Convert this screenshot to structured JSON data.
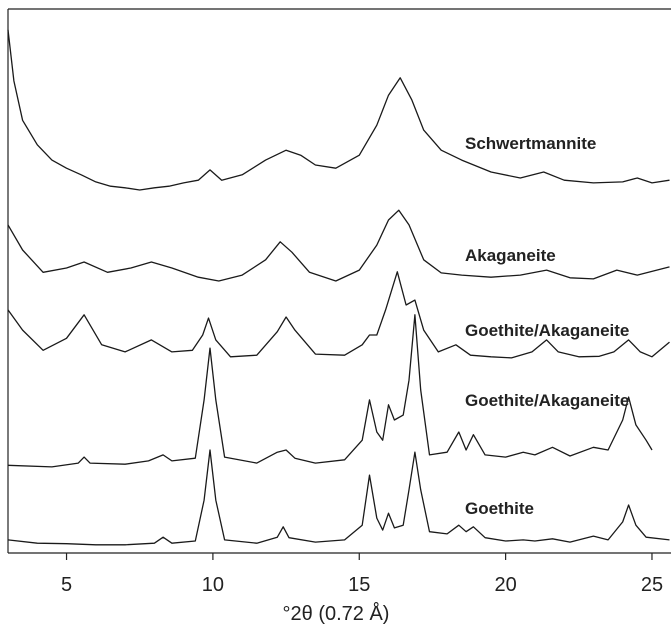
{
  "chart_data": {
    "type": "line",
    "x_label": "°2θ (0.72 Å)",
    "xlim": [
      3,
      25.65
    ],
    "xticks": [
      5,
      10,
      15,
      20,
      25
    ],
    "ylim": [
      0,
      100
    ],
    "series": [
      {
        "name": "Schwertmannite",
        "color": "#1a1a1a",
        "x": [
          3.0,
          3.2,
          3.5,
          4.0,
          4.5,
          5.0,
          5.5,
          6.0,
          6.5,
          7.0,
          7.5,
          8.0,
          8.5,
          9.0,
          9.5,
          9.9,
          10.3,
          11.0,
          11.8,
          12.5,
          13.0,
          13.5,
          14.2,
          15.0,
          15.6,
          16.0,
          16.4,
          16.8,
          17.2,
          17.8,
          18.5,
          19.5,
          20.5,
          21.3,
          22.0,
          23.0,
          24.0,
          24.5,
          25.0,
          25.6
        ],
        "values": [
          96.0,
          86.6,
          79.4,
          74.9,
          72.1,
          70.6,
          69.4,
          68.1,
          67.3,
          67.0,
          66.6,
          67.0,
          67.3,
          67.9,
          68.4,
          70.3,
          68.4,
          69.4,
          72.1,
          73.9,
          73.0,
          71.2,
          70.6,
          73.0,
          78.5,
          84.0,
          87.2,
          83.1,
          77.6,
          73.9,
          72.1,
          69.9,
          68.8,
          69.9,
          68.4,
          67.9,
          68.1,
          68.8,
          67.9,
          68.4
        ]
      },
      {
        "name": "Akaganeite",
        "color": "#1a1a1a",
        "x": [
          3.0,
          3.5,
          4.2,
          5.0,
          5.6,
          6.4,
          7.2,
          7.9,
          8.6,
          9.5,
          10.2,
          11.0,
          11.8,
          12.3,
          12.7,
          13.3,
          14.2,
          15.0,
          15.6,
          16.0,
          16.35,
          16.7,
          17.2,
          17.8,
          18.5,
          19.5,
          20.5,
          21.4,
          22.2,
          23.0,
          23.8,
          24.5,
          25.6
        ],
        "values": [
          60.2,
          55.6,
          51.5,
          52.3,
          53.4,
          51.5,
          52.3,
          53.4,
          52.3,
          50.6,
          49.9,
          51.0,
          53.8,
          57.1,
          55.2,
          51.5,
          49.9,
          51.9,
          56.5,
          61.1,
          62.9,
          60.2,
          53.8,
          51.4,
          51.0,
          50.6,
          51.0,
          51.9,
          50.5,
          50.3,
          51.9,
          51.0,
          52.5
        ]
      },
      {
        "name": "Goethite/Akaganeite",
        "color": "#1a1a1a",
        "x": [
          3.0,
          3.5,
          4.2,
          5.0,
          5.6,
          6.2,
          7.0,
          7.9,
          8.6,
          9.3,
          9.65,
          9.85,
          10.1,
          10.6,
          11.5,
          12.2,
          12.5,
          12.8,
          13.5,
          14.5,
          15.1,
          15.35,
          15.6,
          15.9,
          16.3,
          16.6,
          16.9,
          17.2,
          17.7,
          18.3,
          18.8,
          19.5,
          20.2,
          20.9,
          21.4,
          21.8,
          22.5,
          23.2,
          23.7,
          24.2,
          24.6,
          25.0,
          25.6
        ],
        "values": [
          44.6,
          40.9,
          37.2,
          39.4,
          43.7,
          38.2,
          36.9,
          39.1,
          36.9,
          37.2,
          40.0,
          43.1,
          39.1,
          36.0,
          36.3,
          40.6,
          43.3,
          40.9,
          36.5,
          36.3,
          38.2,
          40.0,
          40.0,
          44.6,
          51.6,
          45.5,
          46.4,
          40.9,
          36.9,
          38.2,
          36.3,
          36.0,
          35.8,
          36.9,
          39.1,
          36.9,
          36.0,
          36.1,
          36.9,
          39.1,
          36.9,
          36.0,
          38.7
        ]
      },
      {
        "name": "Goethite/Akaganeite",
        "color": "#1a1a1a",
        "x": [
          3.0,
          4.5,
          5.4,
          5.6,
          5.8,
          7.0,
          7.8,
          8.3,
          8.6,
          9.4,
          9.7,
          9.9,
          10.1,
          10.4,
          11.5,
          12.2,
          12.5,
          12.8,
          13.5,
          14.5,
          15.1,
          15.35,
          15.6,
          15.8,
          16.0,
          16.2,
          16.5,
          16.7,
          16.9,
          17.1,
          17.4,
          18.0,
          18.4,
          18.65,
          18.9,
          19.3,
          20.0,
          20.6,
          21.0,
          21.6,
          22.2,
          23.0,
          23.5,
          24.0,
          24.2,
          24.45,
          24.8,
          25.0
        ],
        "values": [
          16.1,
          15.8,
          16.5,
          17.6,
          16.5,
          16.3,
          16.9,
          18.0,
          16.9,
          17.4,
          28.1,
          37.6,
          28.1,
          17.6,
          16.5,
          18.5,
          18.9,
          17.4,
          16.5,
          17.1,
          20.7,
          28.1,
          22.2,
          20.7,
          27.2,
          24.4,
          25.3,
          31.7,
          43.7,
          29.9,
          18.0,
          18.5,
          22.2,
          18.9,
          21.7,
          18.0,
          17.6,
          18.5,
          18.0,
          19.4,
          17.8,
          19.4,
          18.9,
          24.4,
          28.6,
          23.5,
          20.7,
          18.9
        ]
      },
      {
        "name": "Goethite",
        "color": "#1a1a1a",
        "x": [
          3.0,
          4.0,
          5.0,
          6.0,
          7.0,
          8.0,
          8.3,
          8.6,
          9.4,
          9.7,
          9.9,
          10.1,
          10.4,
          11.5,
          12.2,
          12.4,
          12.6,
          13.5,
          14.5,
          15.1,
          15.35,
          15.6,
          15.8,
          16.0,
          16.2,
          16.5,
          16.7,
          16.9,
          17.1,
          17.4,
          18.0,
          18.4,
          18.65,
          18.9,
          19.3,
          20.0,
          20.6,
          21.0,
          21.6,
          22.2,
          23.0,
          23.5,
          24.0,
          24.2,
          24.45,
          24.8,
          25.6
        ],
        "values": [
          2.4,
          1.8,
          1.7,
          1.5,
          1.5,
          1.8,
          2.9,
          1.8,
          2.2,
          9.7,
          18.9,
          9.7,
          2.4,
          1.8,
          2.9,
          4.8,
          2.8,
          2.0,
          2.4,
          5.1,
          14.3,
          6.4,
          4.2,
          7.3,
          4.6,
          5.1,
          11.6,
          18.5,
          11.6,
          3.9,
          3.5,
          5.1,
          3.9,
          4.8,
          2.8,
          2.2,
          2.4,
          2.2,
          2.6,
          2.0,
          3.1,
          2.4,
          5.7,
          8.8,
          5.1,
          2.9,
          2.4
        ]
      }
    ]
  }
}
